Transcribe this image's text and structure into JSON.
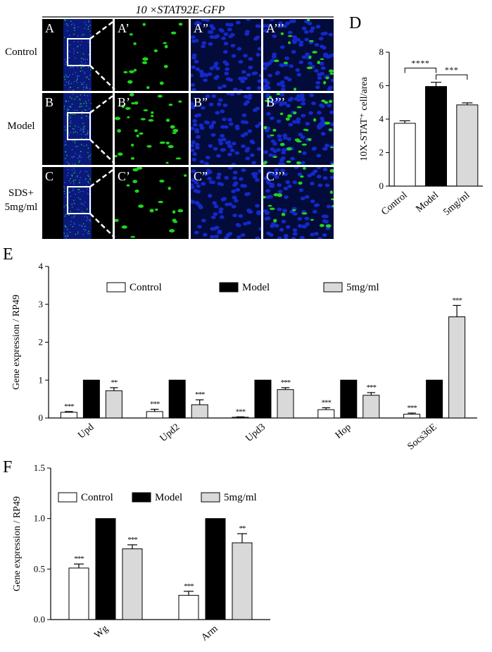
{
  "micro": {
    "title": "10 ×STAT92E-GFP",
    "rows": [
      {
        "label_lines": [
          "Control"
        ],
        "panels": [
          "A",
          "A’",
          "A”",
          "A’’’"
        ],
        "density": 0.5
      },
      {
        "label_lines": [
          "Model"
        ],
        "panels": [
          "B",
          "B’",
          "B”",
          "B’’’"
        ],
        "density": 1.0
      },
      {
        "label_lines": [
          "SDS+",
          "5mg/ml"
        ],
        "panels": [
          "C",
          "C’",
          "C”",
          "C’’’"
        ],
        "density": 0.6
      }
    ],
    "colors": {
      "gfp": "#1fd41f",
      "dapi": "#1428c8",
      "background": "#000000"
    }
  },
  "chart_data": [
    {
      "panel": "D",
      "type": "bar",
      "categories": [
        "Control",
        "Model",
        "5mg/ml"
      ],
      "values": [
        3.75,
        5.95,
        4.85
      ],
      "errors": [
        0.15,
        0.25,
        0.12
      ],
      "fills": [
        "#ffffff",
        "#000000",
        "#d9d9d9"
      ],
      "ylabel": "10X-STAT⁺ cell/area",
      "ylim": [
        0,
        8
      ],
      "yticks": [
        "0",
        "2",
        "4",
        "6",
        "8"
      ],
      "significance": [
        {
          "from": 0,
          "to": 1,
          "label": "****"
        },
        {
          "from": 1,
          "to": 2,
          "label": "***"
        }
      ]
    },
    {
      "panel": "E",
      "type": "bar",
      "categories": [
        "Upd",
        "Upd2",
        "Upd3",
        "Hop",
        "Socs36E"
      ],
      "series": [
        {
          "name": "Control",
          "values": [
            0.15,
            0.17,
            0.02,
            0.22,
            0.1
          ],
          "errors": [
            0.02,
            0.06,
            0.01,
            0.05,
            0.03
          ],
          "marks": [
            "***",
            "***",
            "***",
            "***",
            "***"
          ],
          "fill": "#ffffff"
        },
        {
          "name": "Model",
          "values": [
            1.0,
            1.0,
            1.0,
            1.0,
            1.0
          ],
          "errors": [
            0,
            0,
            0,
            0,
            0
          ],
          "marks": [
            "",
            "",
            "",
            "",
            ""
          ],
          "fill": "#000000"
        },
        {
          "name": "5mg/ml",
          "values": [
            0.72,
            0.35,
            0.75,
            0.6,
            2.67
          ],
          "errors": [
            0.08,
            0.13,
            0.05,
            0.07,
            0.3
          ],
          "marks": [
            "**",
            "***",
            "***",
            "***",
            "***"
          ],
          "fill": "#d9d9d9"
        }
      ],
      "ylabel": "Gene expression / RP49",
      "ylim": [
        0,
        4
      ],
      "yticks": [
        "0",
        "1",
        "2",
        "3",
        "4"
      ],
      "legend": "top"
    },
    {
      "panel": "F",
      "type": "bar",
      "categories": [
        "Wg",
        "Arm"
      ],
      "series": [
        {
          "name": "Control",
          "values": [
            0.51,
            0.24
          ],
          "errors": [
            0.04,
            0.04
          ],
          "marks": [
            "***",
            "***"
          ],
          "fill": "#ffffff"
        },
        {
          "name": "Model",
          "values": [
            1.0,
            1.0
          ],
          "errors": [
            0,
            0
          ],
          "marks": [
            "",
            ""
          ],
          "fill": "#000000"
        },
        {
          "name": "5mg/ml",
          "values": [
            0.7,
            0.76
          ],
          "errors": [
            0.04,
            0.09
          ],
          "marks": [
            "***",
            "**"
          ],
          "fill": "#d9d9d9"
        }
      ],
      "ylabel": "Gene expression / RP49",
      "ylim": [
        0,
        1.5
      ],
      "yticks": [
        "0.0",
        "0.5",
        "1.0",
        "1.5"
      ],
      "legend": "top"
    }
  ]
}
